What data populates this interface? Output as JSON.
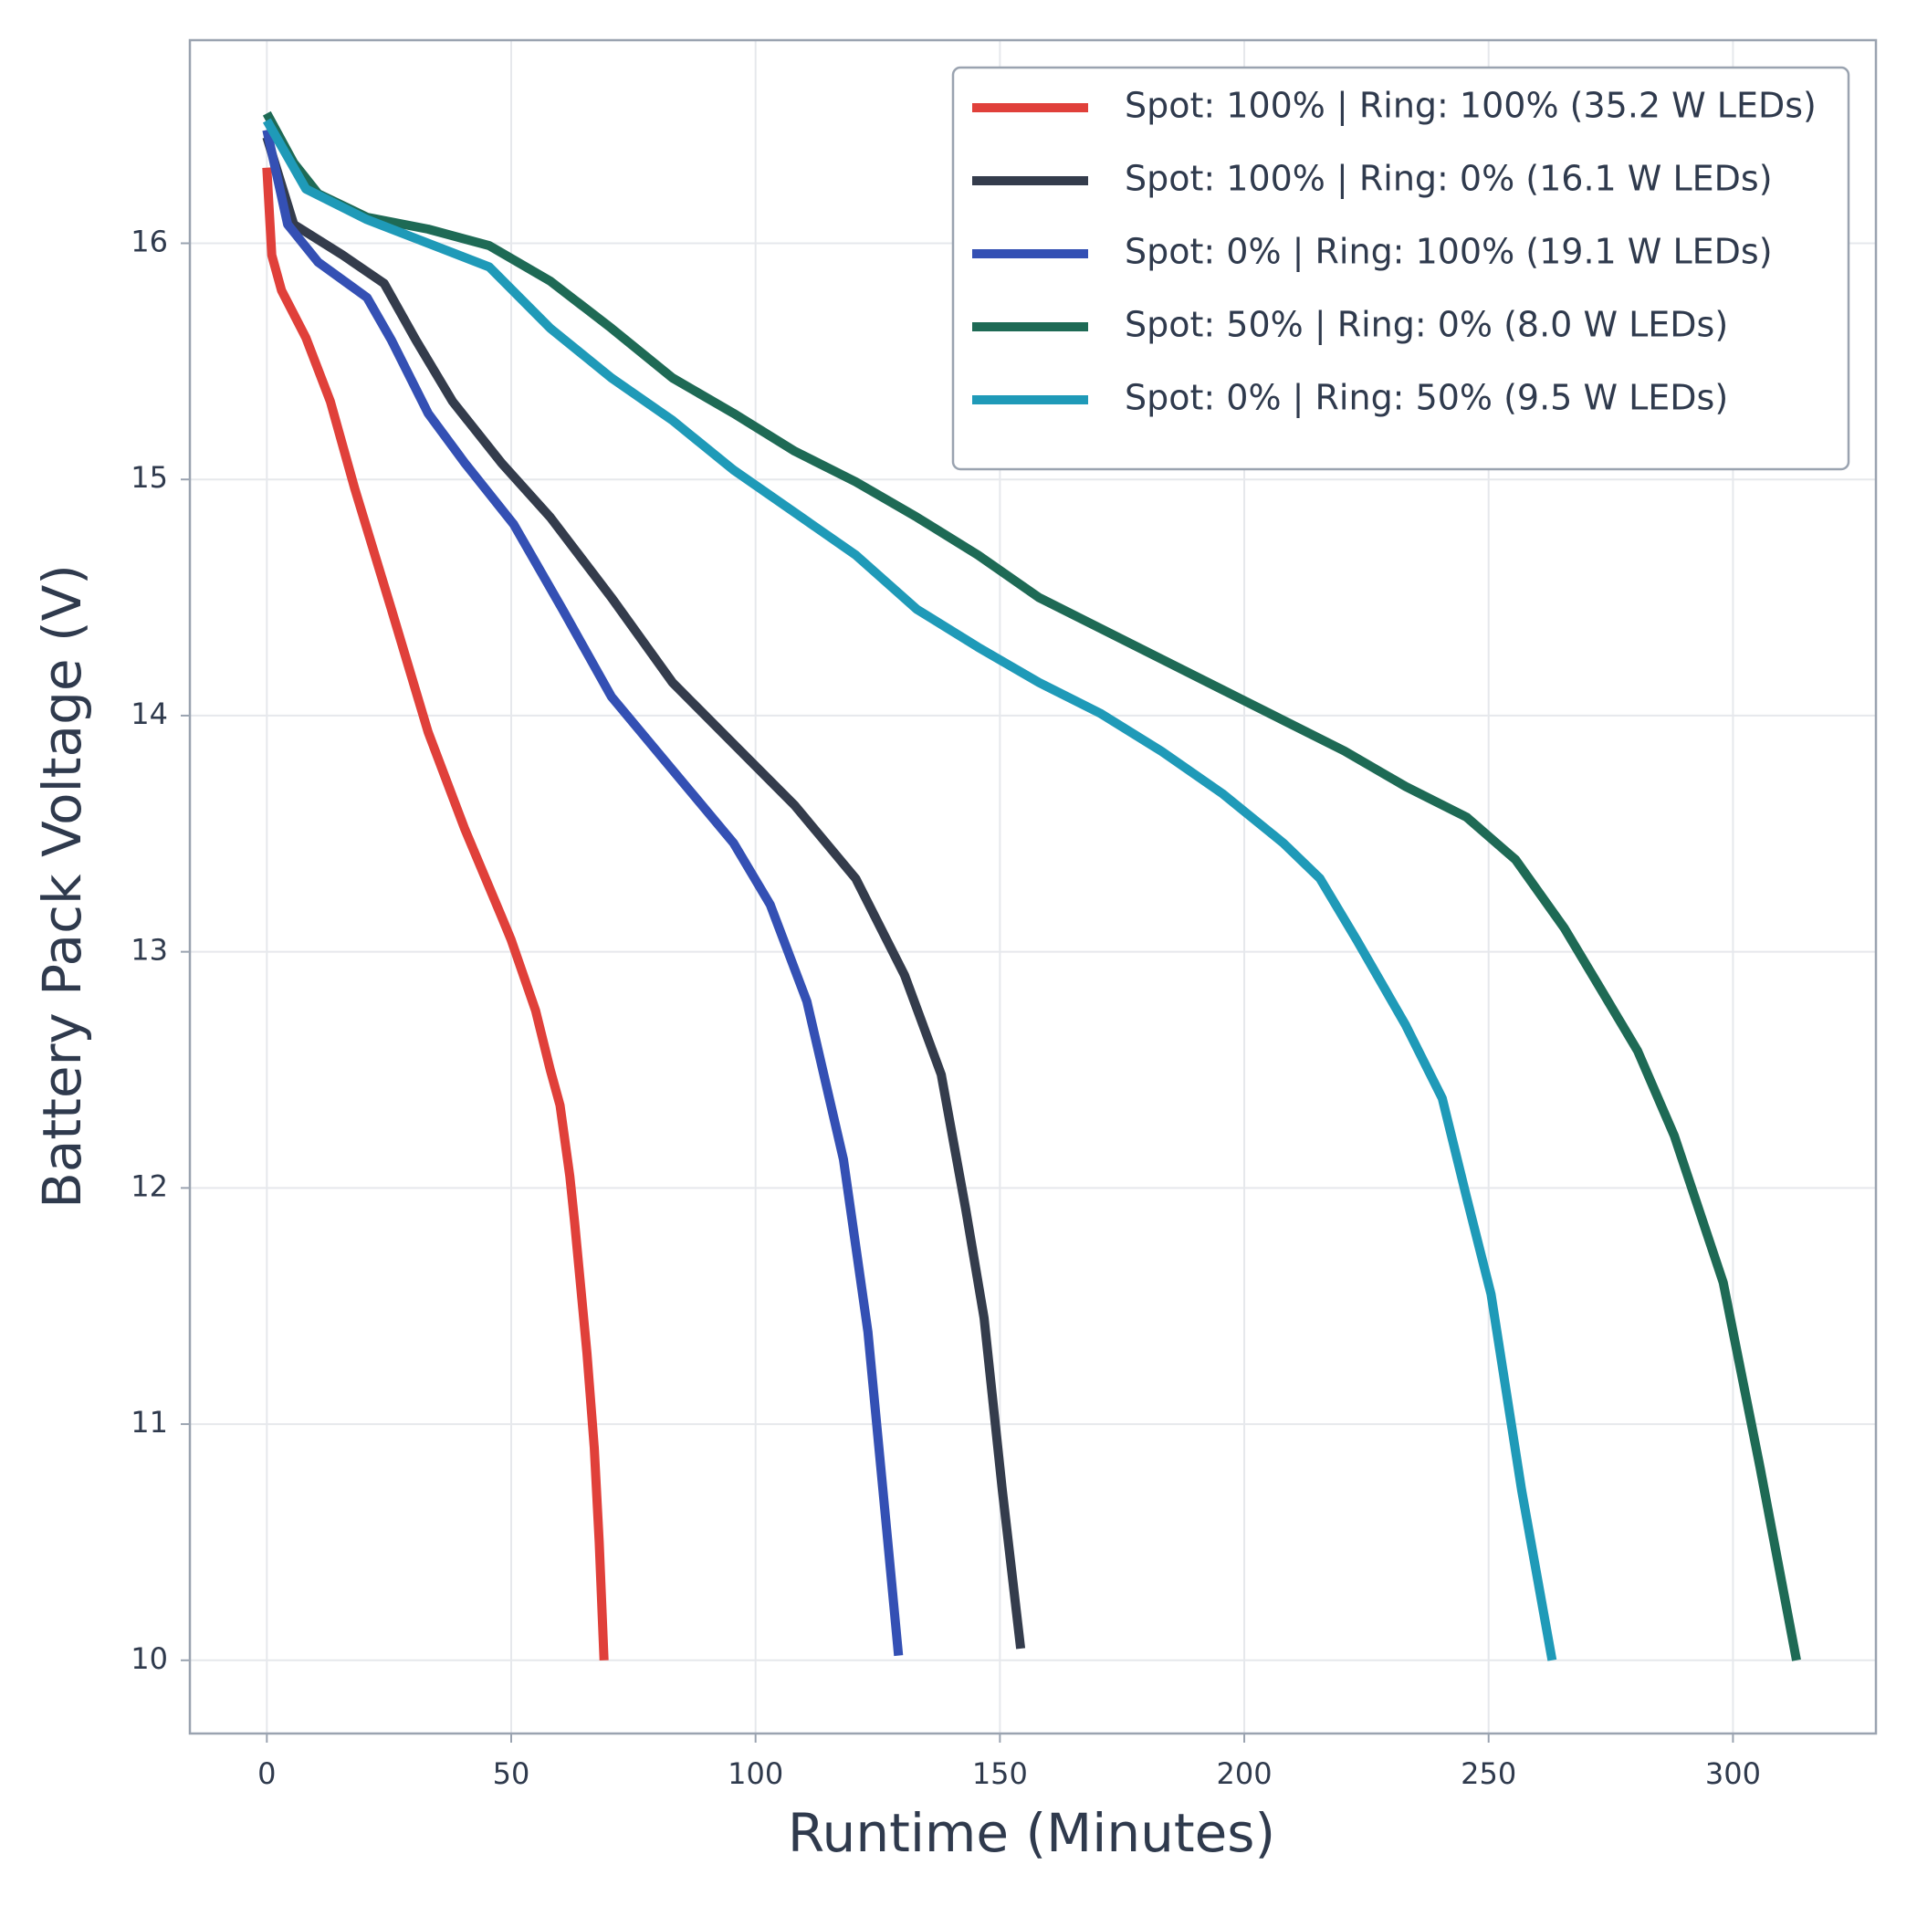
{
  "chart_data": {
    "type": "line",
    "xlabel": "Runtime (Minutes)",
    "ylabel": "Battery Pack Voltage (V)",
    "xlim": [
      -15.75,
      329.25
    ],
    "ylim": [
      9.69,
      16.86
    ],
    "xticks": [
      0,
      50,
      100,
      150,
      200,
      250,
      300
    ],
    "yticks": [
      10,
      11,
      12,
      13,
      14,
      15,
      16
    ],
    "grid": true,
    "legend": "upper right",
    "series": [
      {
        "name": "Spot: 100% | Ring: 100% (35.2 W LEDs)",
        "color": "#e0403a",
        "x": [
          0,
          1,
          3,
          5,
          8,
          13,
          18,
          25.5,
          33,
          40.5,
          48,
          50,
          55,
          58,
          60,
          62,
          63,
          65.5,
          67,
          68,
          69
        ],
        "values": [
          16.32,
          15.95,
          15.8,
          15.72,
          15.6,
          15.33,
          14.96,
          14.45,
          13.93,
          13.52,
          13.15,
          13.05,
          12.75,
          12.5,
          12.35,
          12.05,
          11.85,
          11.3,
          10.9,
          10.5,
          10.0
        ]
      },
      {
        "name": "Spot: 100% | Ring: 0% (16.1 W LEDs)",
        "color": "#343c4c",
        "x": [
          0,
          5.5,
          15.5,
          24,
          30.5,
          38,
          48,
          58,
          70.5,
          83,
          95.5,
          108,
          120.5,
          130.5,
          138,
          143,
          146.75,
          150.5,
          154.25
        ],
        "values": [
          16.45,
          16.08,
          15.95,
          15.83,
          15.59,
          15.33,
          15.07,
          14.84,
          14.5,
          14.14,
          13.88,
          13.62,
          13.31,
          12.9,
          12.48,
          11.91,
          11.45,
          10.72,
          10.05
        ]
      },
      {
        "name": "Spot: 0% | Ring: 100% (19.1 W LEDs)",
        "color": "#3450b4",
        "x": [
          0,
          4.25,
          10.5,
          20.5,
          25.5,
          33,
          40.5,
          50.5,
          60.5,
          70.5,
          83,
          95.5,
          103,
          110.5,
          118,
          123,
          126.75,
          129.25
        ],
        "values": [
          16.48,
          16.08,
          15.92,
          15.77,
          15.59,
          15.28,
          15.07,
          14.81,
          14.45,
          14.08,
          13.77,
          13.46,
          13.2,
          12.79,
          12.12,
          11.39,
          10.57,
          10.02
        ]
      },
      {
        "name": "Spot: 50% | Ring: 0% (8.0 W LEDs)",
        "color": "#1e6a55",
        "x": [
          0,
          5.5,
          10.5,
          20.5,
          33,
          45.5,
          58,
          70.5,
          83,
          95.5,
          108,
          120.5,
          133,
          145.5,
          158,
          170.5,
          183,
          195.5,
          208,
          220.5,
          233,
          245.5,
          255.5,
          265.5,
          273,
          280.5,
          288,
          298,
          305.5,
          313
        ],
        "values": [
          16.55,
          16.34,
          16.21,
          16.11,
          16.06,
          15.99,
          15.84,
          15.64,
          15.43,
          15.28,
          15.12,
          14.99,
          14.84,
          14.68,
          14.5,
          14.37,
          14.24,
          14.11,
          13.98,
          13.85,
          13.7,
          13.57,
          13.39,
          13.1,
          12.84,
          12.58,
          12.22,
          11.6,
          10.82,
          10.0
        ]
      },
      {
        "name": "Spot: 0% | Ring: 50% (9.5 W LEDs)",
        "color": "#1f9ab8",
        "x": [
          0,
          8,
          20.5,
          33,
          45.5,
          58,
          70.5,
          83,
          95.5,
          108,
          120.5,
          133,
          145.5,
          158,
          170.5,
          183,
          195.5,
          208,
          215.5,
          223,
          233,
          240.5,
          245.5,
          250.5,
          256.75,
          263
        ],
        "values": [
          16.52,
          16.23,
          16.1,
          16.0,
          15.9,
          15.64,
          15.43,
          15.25,
          15.04,
          14.86,
          14.68,
          14.45,
          14.29,
          14.14,
          14.01,
          13.85,
          13.67,
          13.46,
          13.31,
          13.05,
          12.69,
          12.38,
          11.96,
          11.55,
          10.72,
          10.0
        ]
      }
    ]
  }
}
